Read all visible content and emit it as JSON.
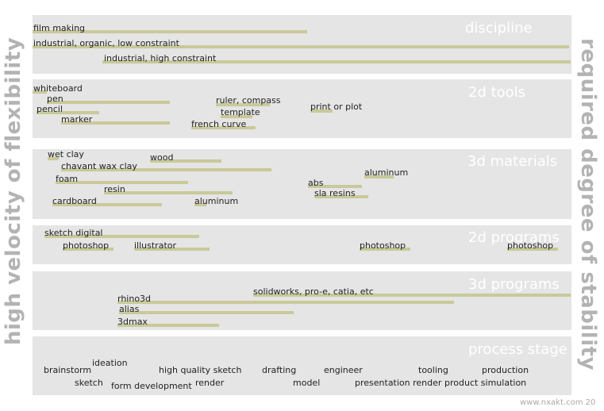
{
  "axes": {
    "left": "high velocity of flexibility",
    "right": "required degree of stability"
  },
  "footer": "www.nxakt.com 20",
  "sections": {
    "discipline": {
      "title": "discipline",
      "items": [
        "film making",
        "industrial, organic, low constraint",
        "industrial, high constraint"
      ]
    },
    "tools2d": {
      "title": "2d tools",
      "items": [
        "whiteboard",
        "pen",
        "pencil",
        "marker",
        "ruler, compass",
        "template",
        "french curve",
        "print or plot"
      ]
    },
    "materials3d": {
      "title": "3d materials",
      "items": [
        "wet clay",
        "wood",
        "chavant wax clay",
        "foam",
        "resin",
        "cardboard",
        "aluminum",
        "abs",
        "sla resins",
        "aluminum"
      ]
    },
    "programs2d": {
      "title": "2d programs",
      "items": [
        "sketch digital",
        "photoshop",
        "illustrator",
        "photoshop",
        "photoshop"
      ]
    },
    "programs3d": {
      "title": "3d programs",
      "items": [
        "solidworks, pro-e, catia, etc",
        "rhino3d",
        "alias",
        "3dmax"
      ]
    },
    "process": {
      "title": "process stage",
      "items": [
        "ideation",
        "brainstorm",
        "high quality sketch",
        "drafting",
        "engineer",
        "tooling",
        "production",
        "sketch",
        "form development",
        "render",
        "model",
        "presentation render",
        "product simulation"
      ]
    }
  }
}
